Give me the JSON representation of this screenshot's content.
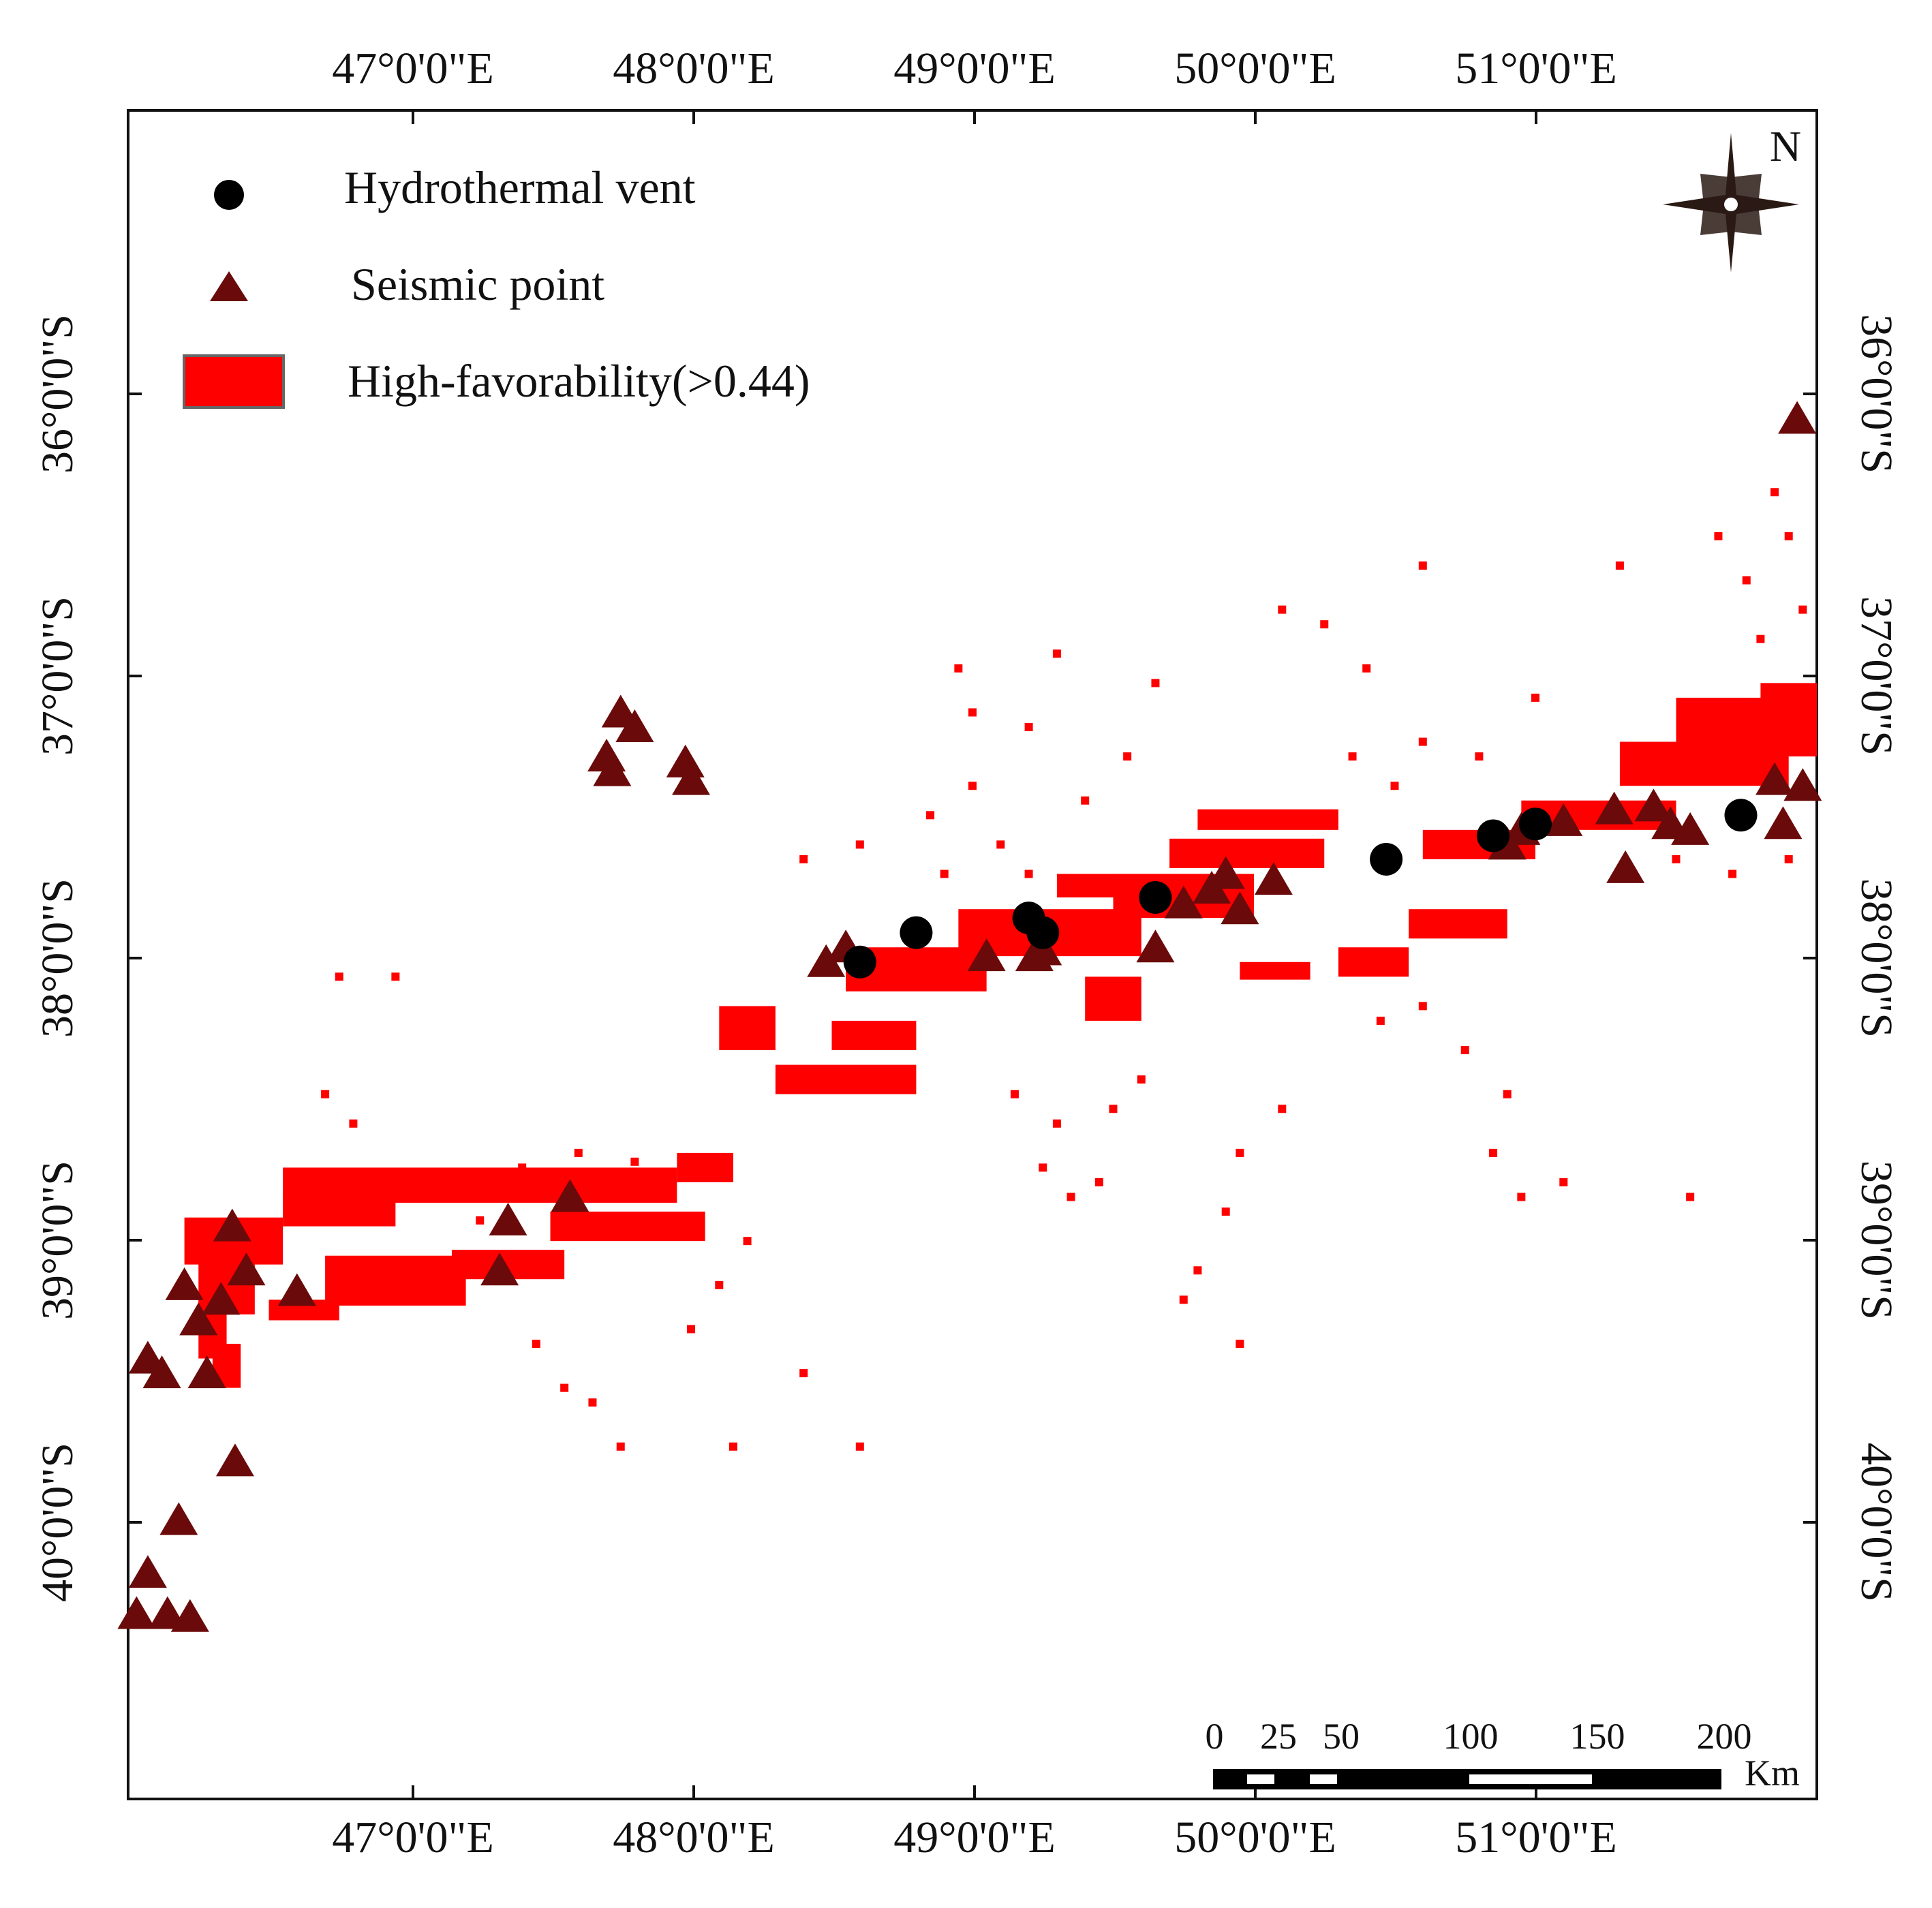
{
  "map": {
    "lon_ticks": [
      "47°0'0\"E",
      "48°0'0\"E",
      "49°0'0\"E",
      "50°0'0\"E",
      "51°0'0\"E"
    ],
    "lat_ticks": [
      "36°0'0\"S",
      "37°0'0\"S",
      "38°0'0\"S",
      "39°0'0\"S",
      "40°0'0\"S"
    ],
    "lon_range": [
      46.0,
      52.0
    ],
    "lat_range": [
      35.0,
      40.75
    ],
    "north_label": "N"
  },
  "legend": {
    "vent_label": "Hydrothermal  vent",
    "seismic_label": "Seismic point",
    "favorability_label": "High-favorability(>0.44)"
  },
  "colors": {
    "favorability": "#ff0000",
    "seismic": "#6b0a0a",
    "vent": "#000000"
  },
  "scale_bar": {
    "labels": [
      "0",
      "25",
      "50",
      "100",
      "150",
      "200"
    ],
    "unit": "Km"
  },
  "hydrothermal_vents": [
    [
      48.6,
      37.9
    ],
    [
      48.8,
      37.8
    ],
    [
      49.2,
      37.75
    ],
    [
      49.25,
      37.8
    ],
    [
      49.65,
      37.68
    ],
    [
      50.47,
      37.55
    ],
    [
      50.85,
      37.47
    ],
    [
      51.0,
      37.43
    ],
    [
      51.73,
      37.4
    ]
  ],
  "seismic_points": [
    [
      47.75,
      37.05
    ],
    [
      47.7,
      37.2
    ],
    [
      47.72,
      37.25
    ],
    [
      47.8,
      37.1
    ],
    [
      47.98,
      37.22
    ],
    [
      48.0,
      37.28
    ],
    [
      48.48,
      37.9
    ],
    [
      48.55,
      37.85
    ],
    [
      49.05,
      37.88
    ],
    [
      49.22,
      37.88
    ],
    [
      49.25,
      37.86
    ],
    [
      49.65,
      37.85
    ],
    [
      49.75,
      37.7
    ],
    [
      49.85,
      37.65
    ],
    [
      49.9,
      37.6
    ],
    [
      49.95,
      37.72
    ],
    [
      50.07,
      37.62
    ],
    [
      50.9,
      37.5
    ],
    [
      50.95,
      37.45
    ],
    [
      51.1,
      37.42
    ],
    [
      51.28,
      37.38
    ],
    [
      51.32,
      37.58
    ],
    [
      51.42,
      37.37
    ],
    [
      51.48,
      37.43
    ],
    [
      51.55,
      37.45
    ],
    [
      51.85,
      37.28
    ],
    [
      51.88,
      37.43
    ],
    [
      51.95,
      37.3
    ],
    [
      51.93,
      36.05
    ],
    [
      47.57,
      38.7
    ],
    [
      47.35,
      38.78
    ],
    [
      47.32,
      38.95
    ],
    [
      46.37,
      38.8
    ],
    [
      46.42,
      38.95
    ],
    [
      46.33,
      39.05
    ],
    [
      46.2,
      39.0
    ],
    [
      46.25,
      39.12
    ],
    [
      46.6,
      39.02
    ],
    [
      46.07,
      39.25
    ],
    [
      46.12,
      39.3
    ],
    [
      46.28,
      39.3
    ],
    [
      46.38,
      39.6
    ],
    [
      46.18,
      39.8
    ],
    [
      46.07,
      39.98
    ],
    [
      46.03,
      40.12
    ],
    [
      46.14,
      40.12
    ],
    [
      46.22,
      40.13
    ]
  ],
  "favorability_zones": [
    {
      "lon": [
        46.2,
        46.55
      ],
      "lat": [
        38.77,
        38.93
      ]
    },
    {
      "lon": [
        46.25,
        46.45
      ],
      "lat": [
        38.85,
        39.1
      ]
    },
    {
      "lon": [
        46.25,
        46.35
      ],
      "lat": [
        39.05,
        39.25
      ]
    },
    {
      "lon": [
        46.3,
        46.4
      ],
      "lat": [
        39.2,
        39.35
      ]
    },
    {
      "lon": [
        46.55,
        47.95
      ],
      "lat": [
        38.6,
        38.72
      ]
    },
    {
      "lon": [
        46.55,
        46.95
      ],
      "lat": [
        38.68,
        38.8
      ]
    },
    {
      "lon": [
        46.7,
        47.2
      ],
      "lat": [
        38.9,
        39.07
      ]
    },
    {
      "lon": [
        46.5,
        46.75
      ],
      "lat": [
        39.05,
        39.12
      ]
    },
    {
      "lon": [
        47.15,
        47.55
      ],
      "lat": [
        38.88,
        38.98
      ]
    },
    {
      "lon": [
        47.5,
        48.05
      ],
      "lat": [
        38.75,
        38.85
      ]
    },
    {
      "lon": [
        47.95,
        48.15
      ],
      "lat": [
        38.55,
        38.65
      ]
    },
    {
      "lon": [
        48.3,
        48.8
      ],
      "lat": [
        38.25,
        38.35
      ]
    },
    {
      "lon": [
        48.5,
        48.8
      ],
      "lat": [
        38.1,
        38.2
      ]
    },
    {
      "lon": [
        48.55,
        49.05
      ],
      "lat": [
        37.85,
        38.0
      ]
    },
    {
      "lon": [
        48.95,
        49.6
      ],
      "lat": [
        37.72,
        37.88
      ]
    },
    {
      "lon": [
        49.5,
        50.0
      ],
      "lat": [
        37.6,
        37.75
      ]
    },
    {
      "lon": [
        49.3,
        49.95
      ],
      "lat": [
        37.6,
        37.68
      ]
    },
    {
      "lon": [
        49.7,
        50.25
      ],
      "lat": [
        37.48,
        37.58
      ]
    },
    {
      "lon": [
        49.8,
        50.3
      ],
      "lat": [
        37.38,
        37.45
      ]
    },
    {
      "lon": [
        49.95,
        50.2
      ],
      "lat": [
        37.9,
        37.96
      ]
    },
    {
      "lon": [
        50.3,
        50.55
      ],
      "lat": [
        37.85,
        37.95
      ]
    },
    {
      "lon": [
        50.55,
        50.9
      ],
      "lat": [
        37.72,
        37.82
      ]
    },
    {
      "lon": [
        50.6,
        51.0
      ],
      "lat": [
        37.45,
        37.55
      ]
    },
    {
      "lon": [
        50.95,
        51.5
      ],
      "lat": [
        37.35,
        37.45
      ]
    },
    {
      "lon": [
        51.5,
        52.0
      ],
      "lat": [
        37.0,
        37.2
      ]
    },
    {
      "lon": [
        51.3,
        51.9
      ],
      "lat": [
        37.15,
        37.3
      ]
    },
    {
      "lon": [
        51.8,
        52.0
      ],
      "lat": [
        36.95,
        37.05
      ]
    },
    {
      "lon": [
        49.4,
        49.6
      ],
      "lat": [
        37.95,
        38.1
      ]
    },
    {
      "lon": [
        48.1,
        48.3
      ],
      "lat": [
        38.05,
        38.2
      ]
    }
  ],
  "scatter_pixels": [
    [
      47.25,
      38.78
    ],
    [
      47.4,
      38.6
    ],
    [
      47.6,
      38.55
    ],
    [
      47.8,
      38.58
    ],
    [
      47.45,
      39.2
    ],
    [
      47.55,
      39.35
    ],
    [
      46.8,
      38.45
    ],
    [
      46.7,
      38.35
    ],
    [
      46.75,
      37.95
    ],
    [
      46.95,
      37.95
    ],
    [
      47.65,
      39.4
    ],
    [
      47.75,
      39.55
    ],
    [
      48.0,
      39.15
    ],
    [
      48.1,
      39.0
    ],
    [
      48.2,
      38.85
    ],
    [
      48.4,
      39.3
    ],
    [
      48.6,
      39.55
    ],
    [
      48.15,
      39.55
    ],
    [
      48.4,
      37.55
    ],
    [
      48.6,
      37.5
    ],
    [
      48.85,
      37.4
    ],
    [
      49.0,
      37.3
    ],
    [
      49.1,
      37.5
    ],
    [
      49.2,
      37.6
    ],
    [
      48.9,
      37.6
    ],
    [
      49.4,
      37.35
    ],
    [
      49.55,
      37.2
    ],
    [
      49.65,
      36.95
    ],
    [
      49.3,
      36.85
    ],
    [
      48.95,
      36.9
    ],
    [
      49.15,
      38.35
    ],
    [
      49.3,
      38.45
    ],
    [
      49.5,
      38.4
    ],
    [
      49.6,
      38.3
    ],
    [
      49.25,
      38.6
    ],
    [
      49.35,
      38.7
    ],
    [
      49.45,
      38.65
    ],
    [
      49.95,
      38.55
    ],
    [
      49.9,
      38.75
    ],
    [
      49.8,
      38.95
    ],
    [
      49.75,
      39.05
    ],
    [
      49.95,
      39.2
    ],
    [
      50.1,
      38.4
    ],
    [
      50.45,
      38.1
    ],
    [
      50.6,
      38.05
    ],
    [
      50.75,
      38.2
    ],
    [
      50.9,
      38.35
    ],
    [
      50.85,
      38.55
    ],
    [
      50.95,
      38.7
    ],
    [
      51.1,
      38.65
    ],
    [
      51.55,
      38.7
    ],
    [
      50.6,
      37.15
    ],
    [
      50.8,
      37.2
    ],
    [
      51.0,
      37.0
    ],
    [
      50.4,
      36.9
    ],
    [
      50.25,
      36.75
    ],
    [
      50.1,
      36.7
    ],
    [
      50.6,
      36.55
    ],
    [
      51.3,
      36.55
    ],
    [
      51.65,
      36.45
    ],
    [
      51.75,
      36.6
    ],
    [
      51.8,
      36.8
    ],
    [
      51.95,
      36.7
    ],
    [
      51.85,
      36.3
    ],
    [
      51.9,
      36.45
    ],
    [
      51.5,
      37.55
    ],
    [
      51.7,
      37.6
    ],
    [
      51.9,
      37.55
    ],
    [
      50.35,
      37.2
    ],
    [
      50.5,
      37.3
    ],
    [
      49.2,
      37.1
    ],
    [
      49.0,
      37.05
    ]
  ]
}
